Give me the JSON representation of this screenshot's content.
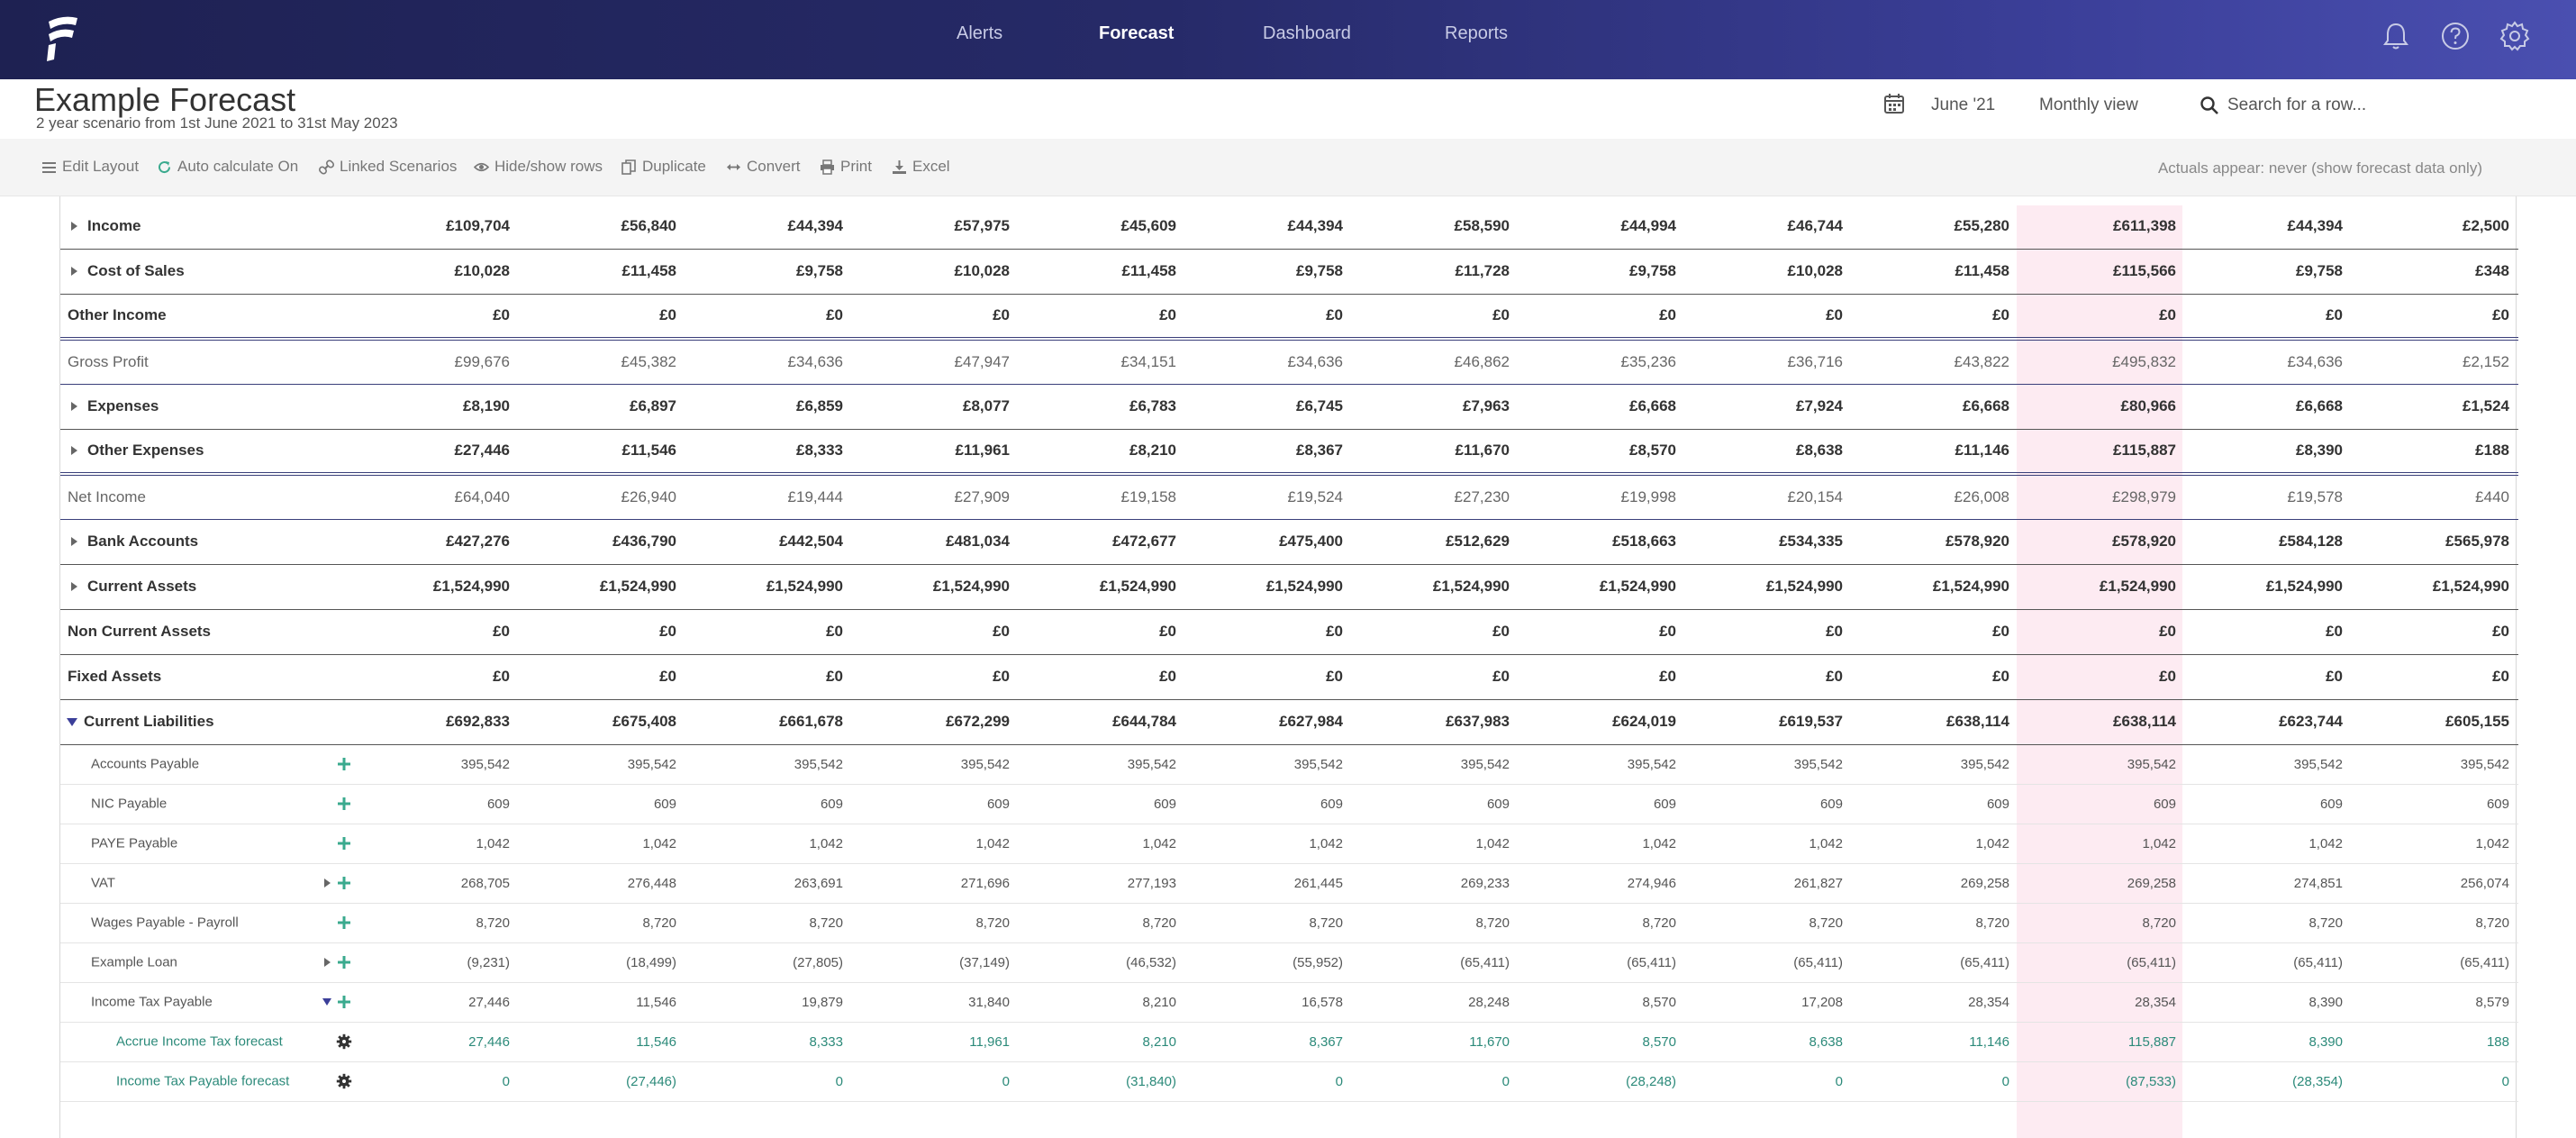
{
  "nav": {
    "links": [
      "Alerts",
      "Forecast",
      "Dashboard",
      "Reports"
    ],
    "active": "Forecast"
  },
  "header": {
    "title": "Example Forecast",
    "subtitle": "2 year scenario from 1st June 2021 to 31st May 2023",
    "date": "June '21",
    "view": "Monthly view",
    "search_placeholder": "Search for a row..."
  },
  "toolbar": {
    "edit_layout": "Edit Layout",
    "auto_calc": "Auto calculate On",
    "linked": "Linked Scenarios",
    "hide_show": "Hide/show rows",
    "duplicate": "Duplicate",
    "convert": "Convert",
    "print": "Print",
    "excel": "Excel",
    "actuals": "Actuals appear: never (show forecast data only)"
  },
  "colors": {
    "nav_start": "#1e2152",
    "nav_end": "#4a4fb0",
    "highlight_column": "#fdebf2",
    "sub_row_text": "#2c8a7a",
    "add_icon": "#3aaa8e"
  },
  "rows": [
    {
      "label": "Income",
      "values": [
        "£109,704",
        "£56,840",
        "£44,394",
        "£57,975",
        "£45,609",
        "£44,394",
        "£58,590",
        "£44,994",
        "£46,744",
        "£55,280",
        "£611,398",
        "£44,394",
        "£2,500"
      ]
    },
    {
      "label": "Cost of Sales",
      "values": [
        "£10,028",
        "£11,458",
        "£9,758",
        "£10,028",
        "£11,458",
        "£9,758",
        "£11,728",
        "£9,758",
        "£10,028",
        "£11,458",
        "£115,566",
        "£9,758",
        "£348"
      ]
    },
    {
      "label": "Other Income",
      "values": [
        "£0",
        "£0",
        "£0",
        "£0",
        "£0",
        "£0",
        "£0",
        "£0",
        "£0",
        "£0",
        "£0",
        "£0",
        "£0"
      ]
    },
    {
      "label": "Gross Profit",
      "values": [
        "£99,676",
        "£45,382",
        "£34,636",
        "£47,947",
        "£34,151",
        "£34,636",
        "£46,862",
        "£35,236",
        "£36,716",
        "£43,822",
        "£495,832",
        "£34,636",
        "£2,152"
      ]
    },
    {
      "label": "Expenses",
      "values": [
        "£8,190",
        "£6,897",
        "£6,859",
        "£8,077",
        "£6,783",
        "£6,745",
        "£7,963",
        "£6,668",
        "£7,924",
        "£6,668",
        "£80,966",
        "£6,668",
        "£1,524"
      ]
    },
    {
      "label": "Other Expenses",
      "values": [
        "£27,446",
        "£11,546",
        "£8,333",
        "£11,961",
        "£8,210",
        "£8,367",
        "£11,670",
        "£8,570",
        "£8,638",
        "£11,146",
        "£115,887",
        "£8,390",
        "£188"
      ]
    },
    {
      "label": "Net Income",
      "values": [
        "£64,040",
        "£26,940",
        "£19,444",
        "£27,909",
        "£19,158",
        "£19,524",
        "£27,230",
        "£19,998",
        "£20,154",
        "£26,008",
        "£298,979",
        "£19,578",
        "£440"
      ]
    },
    {
      "label": "Bank Accounts",
      "values": [
        "£427,276",
        "£436,790",
        "£442,504",
        "£481,034",
        "£472,677",
        "£475,400",
        "£512,629",
        "£518,663",
        "£534,335",
        "£578,920",
        "£578,920",
        "£584,128",
        "£565,978"
      ]
    },
    {
      "label": "Current Assets",
      "values": [
        "£1,524,990",
        "£1,524,990",
        "£1,524,990",
        "£1,524,990",
        "£1,524,990",
        "£1,524,990",
        "£1,524,990",
        "£1,524,990",
        "£1,524,990",
        "£1,524,990",
        "£1,524,990",
        "£1,524,990",
        "£1,524,990"
      ]
    },
    {
      "label": "Non Current Assets",
      "values": [
        "£0",
        "£0",
        "£0",
        "£0",
        "£0",
        "£0",
        "£0",
        "£0",
        "£0",
        "£0",
        "£0",
        "£0",
        "£0"
      ]
    },
    {
      "label": "Fixed Assets",
      "values": [
        "£0",
        "£0",
        "£0",
        "£0",
        "£0",
        "£0",
        "£0",
        "£0",
        "£0",
        "£0",
        "£0",
        "£0",
        "£0"
      ]
    },
    {
      "label": "Current Liabilities",
      "values": [
        "£692,833",
        "£675,408",
        "£661,678",
        "£672,299",
        "£644,784",
        "£627,984",
        "£637,983",
        "£624,019",
        "£619,537",
        "£638,114",
        "£638,114",
        "£623,744",
        "£605,155"
      ]
    },
    {
      "label": "Accounts Payable",
      "values": [
        "395,542",
        "395,542",
        "395,542",
        "395,542",
        "395,542",
        "395,542",
        "395,542",
        "395,542",
        "395,542",
        "395,542",
        "395,542",
        "395,542",
        "395,542"
      ]
    },
    {
      "label": "NIC Payable",
      "values": [
        "609",
        "609",
        "609",
        "609",
        "609",
        "609",
        "609",
        "609",
        "609",
        "609",
        "609",
        "609",
        "609"
      ]
    },
    {
      "label": "PAYE Payable",
      "values": [
        "1,042",
        "1,042",
        "1,042",
        "1,042",
        "1,042",
        "1,042",
        "1,042",
        "1,042",
        "1,042",
        "1,042",
        "1,042",
        "1,042",
        "1,042"
      ]
    },
    {
      "label": "VAT",
      "values": [
        "268,705",
        "276,448",
        "263,691",
        "271,696",
        "277,193",
        "261,445",
        "269,233",
        "274,946",
        "261,827",
        "269,258",
        "269,258",
        "274,851",
        "256,074"
      ]
    },
    {
      "label": "Wages Payable - Payroll",
      "values": [
        "8,720",
        "8,720",
        "8,720",
        "8,720",
        "8,720",
        "8,720",
        "8,720",
        "8,720",
        "8,720",
        "8,720",
        "8,720",
        "8,720",
        "8,720"
      ]
    },
    {
      "label": "Example Loan",
      "values": [
        "(9,231)",
        "(18,499)",
        "(27,805)",
        "(37,149)",
        "(46,532)",
        "(55,952)",
        "(65,411)",
        "(65,411)",
        "(65,411)",
        "(65,411)",
        "(65,411)",
        "(65,411)",
        "(65,411)"
      ]
    },
    {
      "label": "Income Tax Payable",
      "values": [
        "27,446",
        "11,546",
        "19,879",
        "31,840",
        "8,210",
        "16,578",
        "28,248",
        "8,570",
        "17,208",
        "28,354",
        "28,354",
        "8,390",
        "8,579"
      ]
    },
    {
      "label": "Accrue Income Tax forecast",
      "values": [
        "27,446",
        "11,546",
        "8,333",
        "11,961",
        "8,210",
        "8,367",
        "11,670",
        "8,570",
        "8,638",
        "11,146",
        "115,887",
        "8,390",
        "188"
      ]
    },
    {
      "label": "Income Tax Payable forecast",
      "values": [
        "0",
        "(27,446)",
        "0",
        "0",
        "(31,840)",
        "0",
        "0",
        "(28,248)",
        "0",
        "0",
        "(87,533)",
        "(28,354)",
        "0"
      ]
    }
  ]
}
